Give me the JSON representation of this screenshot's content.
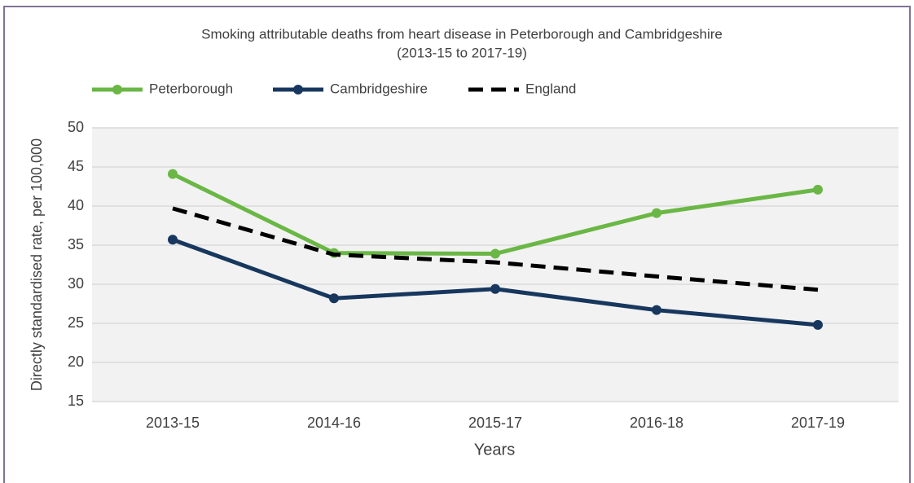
{
  "chart_data": {
    "type": "line",
    "title": "Smoking attributable deaths from heart disease in Peterborough and Cambridgeshire",
    "subtitle": "(2013-15 to 2017-19)",
    "x_label": "Years",
    "y_label": "Directly standardised rate, per 100,000",
    "categories": [
      "2013-15",
      "2014-16",
      "2015-17",
      "2016-18",
      "2017-19"
    ],
    "series": [
      {
        "name": "Peterborough",
        "color": "#6ab745",
        "marker": true,
        "dashed": false,
        "values": [
          44.1,
          34.0,
          33.9,
          39.1,
          42.1
        ]
      },
      {
        "name": "Cambridgeshire",
        "color": "#17375e",
        "marker": true,
        "dashed": false,
        "values": [
          35.7,
          28.2,
          29.4,
          26.7,
          24.8
        ]
      },
      {
        "name": "England",
        "color": "#000000",
        "marker": false,
        "dashed": true,
        "values": [
          39.7,
          33.8,
          32.8,
          31.0,
          29.3
        ]
      }
    ],
    "ylim": [
      15,
      50
    ],
    "yticks": [
      15,
      20,
      25,
      30,
      35,
      40,
      45,
      50
    ],
    "grid": true,
    "legend": "top"
  }
}
